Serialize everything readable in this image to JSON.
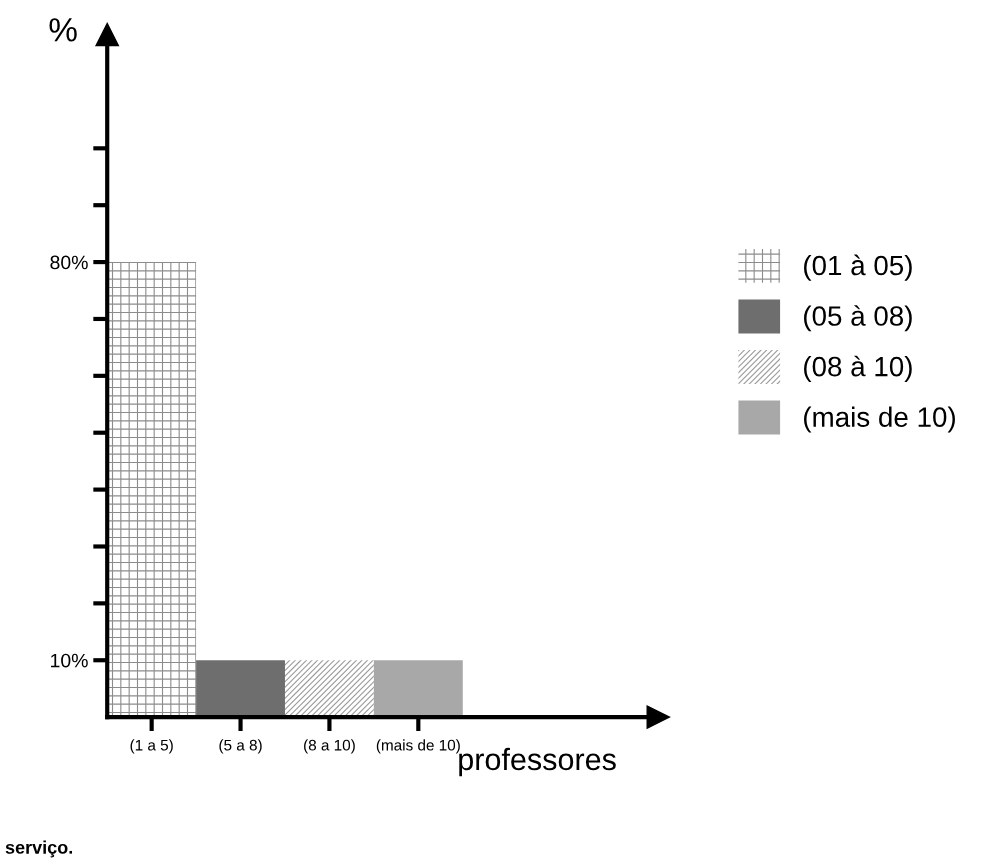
{
  "chart_data": {
    "type": "bar",
    "ylabel": "%",
    "xlabel": "professores",
    "categories": [
      "(1 a 5)",
      "(5 a 8)",
      "(8 a 10)",
      "(mais de 10)"
    ],
    "series": [
      {
        "name": "(01 à 05)",
        "color": "#8c8c8c",
        "values": [
          80,
          null,
          null,
          null
        ]
      },
      {
        "name": "(05 à 08)",
        "color": "#6e6e6e",
        "values": [
          null,
          10,
          null,
          null
        ]
      },
      {
        "name": "(08 à 10)",
        "color": "#9a9a9a",
        "values": [
          null,
          null,
          10,
          null
        ]
      },
      {
        "name": "(mais de 10)",
        "color": "#a8a8a8",
        "values": [
          null,
          null,
          null,
          10
        ]
      }
    ],
    "ylim": [
      0,
      120
    ],
    "yticks": [
      {
        "value": 10,
        "label": "10%"
      },
      {
        "value": 20,
        "label": null
      },
      {
        "value": 30,
        "label": null
      },
      {
        "value": 40,
        "label": null
      },
      {
        "value": 50,
        "label": null
      },
      {
        "value": 60,
        "label": null
      },
      {
        "value": 70,
        "label": null
      },
      {
        "value": 80,
        "label": "80%"
      },
      {
        "value": 90,
        "label": null
      },
      {
        "value": 100,
        "label": null
      }
    ],
    "legend": "right",
    "grid": false,
    "annotations": [
      "serviço."
    ]
  }
}
